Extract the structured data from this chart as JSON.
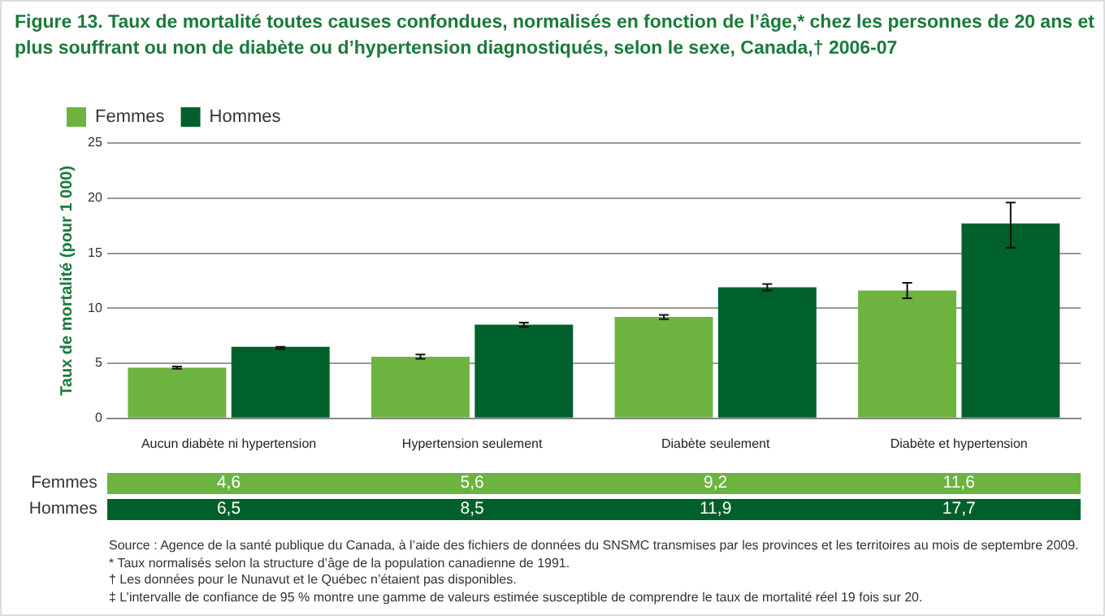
{
  "chart_data": {
    "type": "bar",
    "title": "Figure 13. Taux de mortalité toutes causes confondues, normalisés en fonction de l’âge,* chez les personnes de 20 ans et plus souffrant ou non de diabète ou d’hypertension diagnostiqués, selon le sexe, Canada,† 2006-07",
    "ylabel": "Taux de mortalité (pour 1 000)",
    "categories": [
      "Aucun diabète ni hypertension",
      "Hypertension seulement",
      "Diabète seulement",
      "Diabète et hypertension"
    ],
    "series": [
      {
        "name": "Femmes",
        "color": "#6db33f",
        "values": [
          4.6,
          5.6,
          9.2,
          11.6
        ],
        "value_labels": [
          "4,6",
          "5,6",
          "9,2",
          "11,6"
        ],
        "errors": [
          [
            4.5,
            4.7
          ],
          [
            5.4,
            5.8
          ],
          [
            9.0,
            9.4
          ],
          [
            10.9,
            12.3
          ]
        ]
      },
      {
        "name": "Hommes",
        "color": "#00602b",
        "values": [
          6.5,
          8.5,
          11.9,
          17.7
        ],
        "value_labels": [
          "6,5",
          "8,5",
          "11,9",
          "17,7"
        ],
        "errors": [
          [
            6.3,
            6.5
          ],
          [
            8.3,
            8.7
          ],
          [
            11.6,
            12.2
          ],
          [
            15.5,
            19.6
          ]
        ]
      }
    ],
    "ylim": [
      0,
      25
    ],
    "yticks": [
      0,
      5,
      10,
      15,
      20,
      25
    ],
    "grid": "y",
    "legend": "top left",
    "annotations": [
      "Source : Agence de la santé publique du Canada, à l’aide des fichiers de données du SNSMC transmises par les provinces et les territoires au mois de septembre 2009.",
      "* Taux normalisés selon la structure d’âge de la population canadienne de 1991.",
      "† Les données pour le Nunavut et le Québec n’étaient pas disponibles.",
      "‡ L’intervalle de confiance de 95 % montre une gamme de valeurs estimée susceptible de comprendre le taux de mortalité réel 19 fois sur 20."
    ]
  }
}
